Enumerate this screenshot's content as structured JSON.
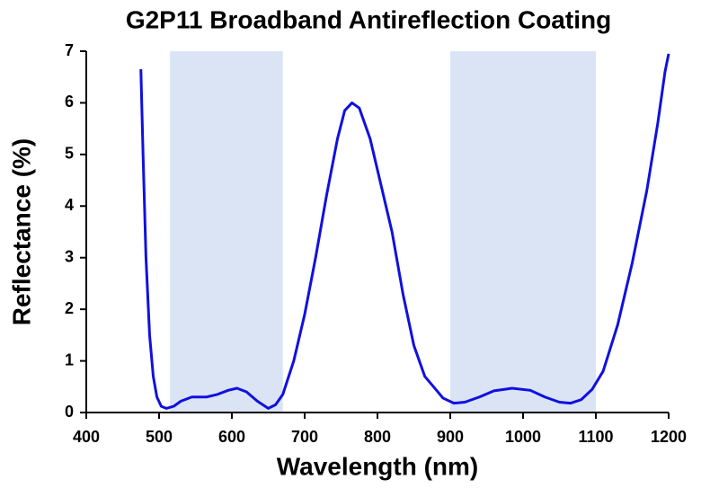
{
  "chart_data": {
    "type": "line",
    "title": "G2P11 Broadband Antireflection Coating",
    "x_label": "Wavelength (nm)",
    "y_label": "Reflectance (%)",
    "xlim": [
      400,
      1200
    ],
    "xticks": [
      400,
      500,
      600,
      700,
      800,
      900,
      1000,
      1100,
      1200
    ],
    "ylim": [
      0,
      7
    ],
    "yticks": [
      0,
      1,
      2,
      3,
      4,
      5,
      6,
      7
    ],
    "highlight_ranges": [
      [
        515,
        670
      ],
      [
        900,
        1100
      ]
    ],
    "highlight_color": "#dbe4f5",
    "grid": false,
    "series": [
      {
        "name": "Reflectance",
        "color": "#1010e0",
        "x": [
          475,
          478,
          482,
          487,
          492,
          497,
          503,
          510,
          520,
          530,
          545,
          565,
          580,
          595,
          607,
          620,
          635,
          650,
          660,
          670,
          685,
          700,
          715,
          730,
          745,
          755,
          765,
          775,
          790,
          805,
          820,
          835,
          850,
          865,
          880,
          890,
          905,
          920,
          940,
          960,
          985,
          1010,
          1030,
          1050,
          1065,
          1080,
          1095,
          1110,
          1130,
          1150,
          1170,
          1185,
          1195,
          1200
        ],
        "values": [
          6.65,
          5.0,
          3.0,
          1.5,
          0.7,
          0.3,
          0.12,
          0.08,
          0.12,
          0.22,
          0.3,
          0.3,
          0.35,
          0.43,
          0.47,
          0.4,
          0.22,
          0.08,
          0.15,
          0.35,
          1.0,
          1.9,
          3.0,
          4.2,
          5.3,
          5.85,
          6.0,
          5.9,
          5.3,
          4.4,
          3.5,
          2.3,
          1.3,
          0.7,
          0.45,
          0.28,
          0.18,
          0.2,
          0.3,
          0.42,
          0.47,
          0.43,
          0.3,
          0.2,
          0.18,
          0.25,
          0.45,
          0.8,
          1.7,
          2.9,
          4.3,
          5.6,
          6.6,
          6.95
        ]
      }
    ]
  }
}
